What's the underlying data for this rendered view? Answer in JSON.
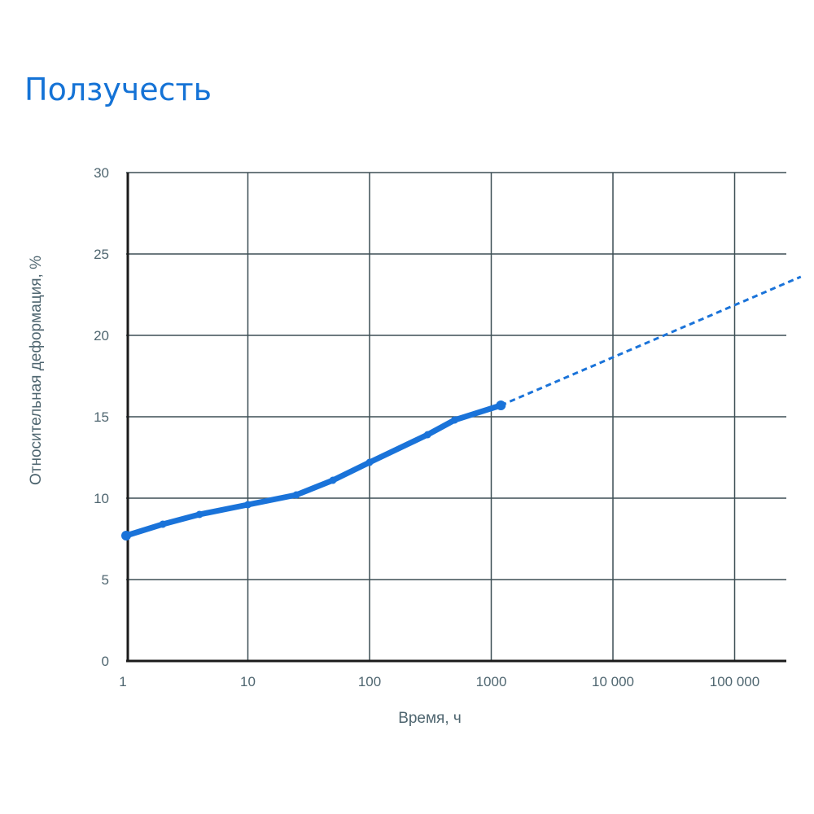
{
  "chart_data": {
    "type": "line",
    "title": "Ползучесть",
    "xlabel": "Время, ч",
    "ylabel": "Относительная деформация, %",
    "x_scale": "log",
    "xlim": [
      1,
      350000
    ],
    "ylim": [
      0,
      30
    ],
    "grid": true,
    "x_ticks": [
      {
        "value": 1,
        "label": "1"
      },
      {
        "value": 10,
        "label": "10"
      },
      {
        "value": 100,
        "label": "100"
      },
      {
        "value": 1000,
        "label": "1000"
      },
      {
        "value": 10000,
        "label": "10 000"
      },
      {
        "value": 100000,
        "label": "100 000"
      }
    ],
    "y_ticks": [
      {
        "value": 0,
        "label": "0"
      },
      {
        "value": 5,
        "label": "5"
      },
      {
        "value": 10,
        "label": "10"
      },
      {
        "value": 15,
        "label": "15"
      },
      {
        "value": 20,
        "label": "20"
      },
      {
        "value": 25,
        "label": "25"
      },
      {
        "value": 30,
        "label": "30"
      }
    ],
    "series": [
      {
        "style": "solid",
        "color": "#1a73d9",
        "x": [
          1,
          2,
          4,
          10,
          25,
          50,
          100,
          300,
          500,
          1200
        ],
        "y": [
          7.7,
          8.4,
          9.0,
          9.6,
          10.2,
          11.1,
          12.2,
          13.9,
          14.8,
          15.7
        ]
      },
      {
        "style": "dashed",
        "color": "#1a73d9",
        "x": [
          1200,
          350000
        ],
        "y": [
          15.7,
          23.6
        ]
      }
    ]
  }
}
